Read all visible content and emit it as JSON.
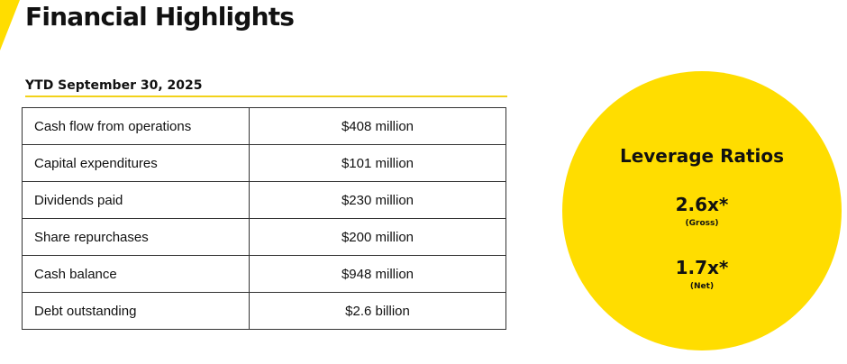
{
  "header": {
    "title": "Financial Highlights",
    "accent_color": "#FFDD00"
  },
  "section": {
    "subtitle": "YTD September 30, 2025"
  },
  "table": {
    "rows": [
      {
        "label": "Cash flow from operations",
        "value": "$408 million"
      },
      {
        "label": "Capital expenditures",
        "value": "$101 million"
      },
      {
        "label": "Dividends paid",
        "value": "$230 million"
      },
      {
        "label": "Share repurchases",
        "value": "$200 million"
      },
      {
        "label": "Cash balance",
        "value": "$948 million"
      },
      {
        "label": "Debt outstanding",
        "value": "$2.6 billion"
      }
    ]
  },
  "leverage": {
    "title": "Leverage Ratios",
    "gross_value": "2.6x*",
    "gross_label": "(Gross)",
    "net_value": "1.7x*",
    "net_label": "(Net)",
    "circle_color": "#FFDD00"
  }
}
